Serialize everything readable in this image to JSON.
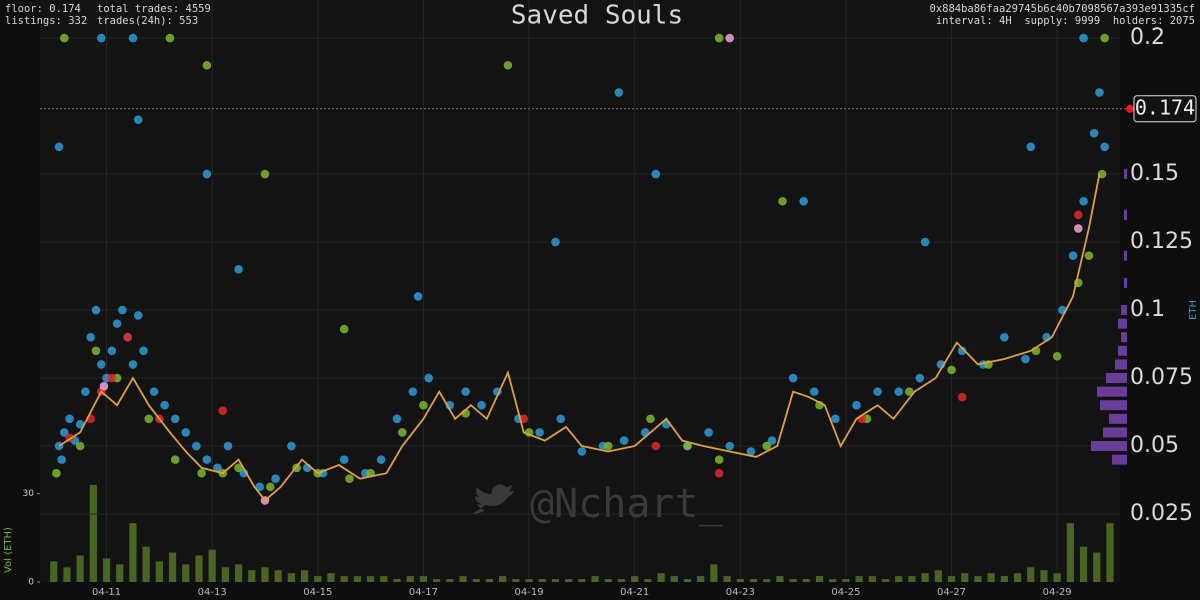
{
  "header": {
    "left": [
      "floor: 0.174",
      "listings: 332"
    ],
    "left2": [
      "total trades: 4559",
      "trades(24h): 553"
    ],
    "right": [
      "0x884ba86faa29745b6c40b7098567a393e91335cf",
      "interval: 4H  supply: 9999  holders: 2075"
    ]
  },
  "watermark": "@Nchart_",
  "chart_data": [
    {
      "type": "scatter",
      "title": "Saved Souls",
      "y_label": "ETH",
      "floor": 0.174,
      "floor_color": "#e02020",
      "xlim": [
        9.74,
        30.19
      ],
      "ylim": [
        0,
        0.214
      ],
      "yticks": [
        0.025,
        0.05,
        0.075,
        0.1,
        0.125,
        0.15,
        0.2
      ],
      "grid": true,
      "series": [
        {
          "color": "#2f9ad6",
          "x": [
            10.1,
            10.15,
            10.2,
            10.3,
            10.4,
            10.5,
            10.6,
            10.7,
            10.8,
            10.9,
            11,
            11.1,
            11.2,
            11.3,
            11.4,
            11.5,
            11.6,
            11.7,
            11.9,
            12.1,
            12.3,
            12.5,
            12.7,
            12.9,
            13.1,
            13.3,
            13.6,
            13.9,
            14.2,
            14.5,
            14.8,
            15.1,
            15.5,
            15.9,
            16.2,
            16.5,
            16.8,
            17.1,
            17.5,
            17.8,
            18.1,
            18.4,
            18.8,
            19.2,
            19.6,
            20,
            20.4,
            20.8,
            21.2,
            21.6,
            22,
            22.4,
            22.8,
            23.2,
            23.6,
            24,
            24.4,
            24.8,
            25.2,
            25.6,
            26,
            26.4,
            26.8,
            27.2,
            27.6,
            28,
            28.4,
            28.8,
            29.1,
            29.3,
            29.5,
            29.7,
            29.8,
            29.9,
            10.1,
            10.9,
            11.5,
            11.6,
            12.9,
            19.5,
            21.4,
            24.2,
            26.5,
            28.5,
            29.5,
            13.5,
            16.9,
            20.7
          ],
          "values": [
            0.05,
            0.045,
            0.055,
            0.06,
            0.052,
            0.058,
            0.07,
            0.09,
            0.1,
            0.08,
            0.075,
            0.085,
            0.095,
            0.1,
            0.09,
            0.08,
            0.098,
            0.085,
            0.07,
            0.065,
            0.06,
            0.055,
            0.05,
            0.045,
            0.042,
            0.05,
            0.04,
            0.035,
            0.038,
            0.05,
            0.042,
            0.04,
            0.045,
            0.04,
            0.045,
            0.06,
            0.07,
            0.075,
            0.065,
            0.07,
            0.065,
            0.07,
            0.06,
            0.055,
            0.06,
            0.048,
            0.05,
            0.052,
            0.055,
            0.058,
            0.05,
            0.055,
            0.05,
            0.048,
            0.052,
            0.075,
            0.07,
            0.06,
            0.065,
            0.07,
            0.07,
            0.075,
            0.08,
            0.085,
            0.08,
            0.09,
            0.082,
            0.09,
            0.1,
            0.12,
            0.14,
            0.165,
            0.18,
            0.16,
            0.16,
            0.2,
            0.2,
            0.17,
            0.15,
            0.125,
            0.15,
            0.14,
            0.125,
            0.16,
            0.2,
            0.115,
            0.105,
            0.18
          ]
        },
        {
          "color": "#7cb82f",
          "x": [
            10.05,
            10.5,
            10.8,
            11.2,
            11.8,
            12.3,
            12.8,
            13.2,
            13.5,
            14.1,
            14.6,
            15,
            15.6,
            16,
            16.6,
            17,
            17.8,
            19,
            20.5,
            21.3,
            22,
            22.6,
            23.5,
            24.5,
            25.4,
            26.2,
            27,
            27.7,
            28.6,
            29,
            29.4,
            29.6,
            29.85,
            10.2,
            12.2,
            12.9,
            14,
            18.6,
            22.6,
            23.8,
            29.9,
            15.5
          ],
          "values": [
            0.04,
            0.05,
            0.085,
            0.075,
            0.06,
            0.045,
            0.04,
            0.04,
            0.042,
            0.035,
            0.042,
            0.04,
            0.038,
            0.04,
            0.055,
            0.065,
            0.062,
            0.055,
            0.05,
            0.06,
            0.05,
            0.045,
            0.05,
            0.065,
            0.06,
            0.07,
            0.078,
            0.08,
            0.085,
            0.083,
            0.11,
            0.12,
            0.15,
            0.2,
            0.2,
            0.19,
            0.15,
            0.19,
            0.2,
            0.14,
            0.2,
            0.093
          ]
        },
        {
          "color": "#e02828",
          "x": [
            10.3,
            10.7,
            10.9,
            11.1,
            11.4,
            12,
            18.9,
            21.4,
            22.6,
            25.3,
            27.2,
            29.4,
            13.2
          ],
          "values": [
            0.053,
            0.06,
            0.07,
            0.075,
            0.09,
            0.06,
            0.06,
            0.05,
            0.04,
            0.06,
            0.068,
            0.135,
            0.063
          ]
        },
        {
          "color": "#f2a6d6",
          "x": [
            10.95,
            14,
            22.8,
            29.4
          ],
          "values": [
            0.072,
            0.03,
            0.2,
            0.13
          ]
        },
        {
          "type": "line",
          "color": "#e0a040",
          "x": [
            10.1,
            10.5,
            10.9,
            11.2,
            11.5,
            11.8,
            12.2,
            12.5,
            12.8,
            13.2,
            13.5,
            13.8,
            14,
            14.3,
            14.7,
            15,
            15.4,
            15.8,
            16.3,
            16.6,
            17,
            17.3,
            17.6,
            17.9,
            18.2,
            18.6,
            18.9,
            19.3,
            19.7,
            20,
            20.5,
            21,
            21.3,
            21.6,
            21.9,
            22.3,
            22.8,
            23.3,
            23.7,
            24,
            24.3,
            24.6,
            24.9,
            25.2,
            25.6,
            25.9,
            26.3,
            26.7,
            27.1,
            27.5,
            28,
            28.5,
            28.9,
            29.3,
            29.6,
            29.8
          ],
          "values": [
            0.05,
            0.055,
            0.07,
            0.065,
            0.075,
            0.065,
            0.055,
            0.048,
            0.042,
            0.04,
            0.045,
            0.035,
            0.03,
            0.035,
            0.045,
            0.04,
            0.043,
            0.038,
            0.04,
            0.05,
            0.06,
            0.07,
            0.06,
            0.065,
            0.06,
            0.077,
            0.055,
            0.052,
            0.057,
            0.05,
            0.048,
            0.05,
            0.055,
            0.06,
            0.052,
            0.05,
            0.048,
            0.046,
            0.05,
            0.07,
            0.068,
            0.065,
            0.05,
            0.06,
            0.065,
            0.06,
            0.07,
            0.075,
            0.088,
            0.08,
            0.082,
            0.085,
            0.09,
            0.105,
            0.13,
            0.15
          ]
        }
      ]
    },
    {
      "type": "bar",
      "y_label": "Vol (ETH)",
      "color": "#4a6424",
      "xlim": [
        9.74,
        30.19
      ],
      "ylim": [
        0,
        35
      ],
      "yticks": [
        0,
        30
      ],
      "xticks": [
        {
          "value": 11,
          "label": "04-11"
        },
        {
          "value": 13,
          "label": "04-13"
        },
        {
          "value": 15,
          "label": "04-15"
        },
        {
          "value": 17,
          "label": "04-17"
        },
        {
          "value": 19,
          "label": "04-19"
        },
        {
          "value": 21,
          "label": "04-21"
        },
        {
          "value": 23,
          "label": "04-23"
        },
        {
          "value": 25,
          "label": "04-25"
        },
        {
          "value": 27,
          "label": "04-27"
        },
        {
          "value": 29,
          "label": "04-29"
        }
      ],
      "x": [
        10,
        10.25,
        10.5,
        10.75,
        11,
        11.25,
        11.5,
        11.75,
        12,
        12.25,
        12.5,
        12.75,
        13,
        13.25,
        13.5,
        13.75,
        14,
        14.25,
        14.5,
        14.75,
        15,
        15.25,
        15.5,
        15.75,
        16,
        16.25,
        16.5,
        16.75,
        17,
        17.25,
        17.5,
        17.75,
        18,
        18.25,
        18.5,
        18.75,
        19,
        19.25,
        19.5,
        19.75,
        20,
        20.25,
        20.5,
        20.75,
        21,
        21.25,
        21.5,
        21.75,
        22,
        22.25,
        22.5,
        22.75,
        23,
        23.25,
        23.5,
        23.75,
        24,
        24.25,
        24.5,
        24.75,
        25,
        25.25,
        25.5,
        25.75,
        26,
        26.25,
        26.5,
        26.75,
        27,
        27.25,
        27.5,
        27.75,
        28,
        28.25,
        28.5,
        28.75,
        29,
        29.25,
        29.5,
        29.75,
        30
      ],
      "values": [
        7,
        5,
        9,
        33,
        8,
        6,
        20,
        12,
        7,
        10,
        6,
        9,
        11,
        5,
        6,
        4,
        5,
        4,
        3,
        4,
        2,
        3,
        2,
        2,
        2,
        2,
        1,
        2,
        2,
        1,
        1,
        2,
        1,
        1,
        2,
        1,
        1,
        1,
        1,
        1,
        1,
        2,
        1,
        1,
        2,
        1,
        3,
        2,
        1,
        2,
        6,
        2,
        1,
        1,
        1,
        2,
        1,
        1,
        2,
        1,
        1,
        2,
        2,
        1,
        2,
        2,
        3,
        4,
        2,
        3,
        2,
        3,
        2,
        3,
        5,
        4,
        3,
        20,
        12,
        10,
        20
      ]
    },
    {
      "type": "barh",
      "color": "#6a3d9a",
      "xlim": [
        0,
        14
      ],
      "y": [
        0.045,
        0.05,
        0.055,
        0.06,
        0.065,
        0.07,
        0.075,
        0.08,
        0.085,
        0.09,
        0.095,
        0.1,
        0.11,
        0.12,
        0.135,
        0.15
      ],
      "values": [
        5,
        12,
        8,
        6,
        9,
        10,
        7,
        4,
        3,
        2,
        3,
        2,
        1,
        1,
        1,
        1
      ]
    }
  ]
}
